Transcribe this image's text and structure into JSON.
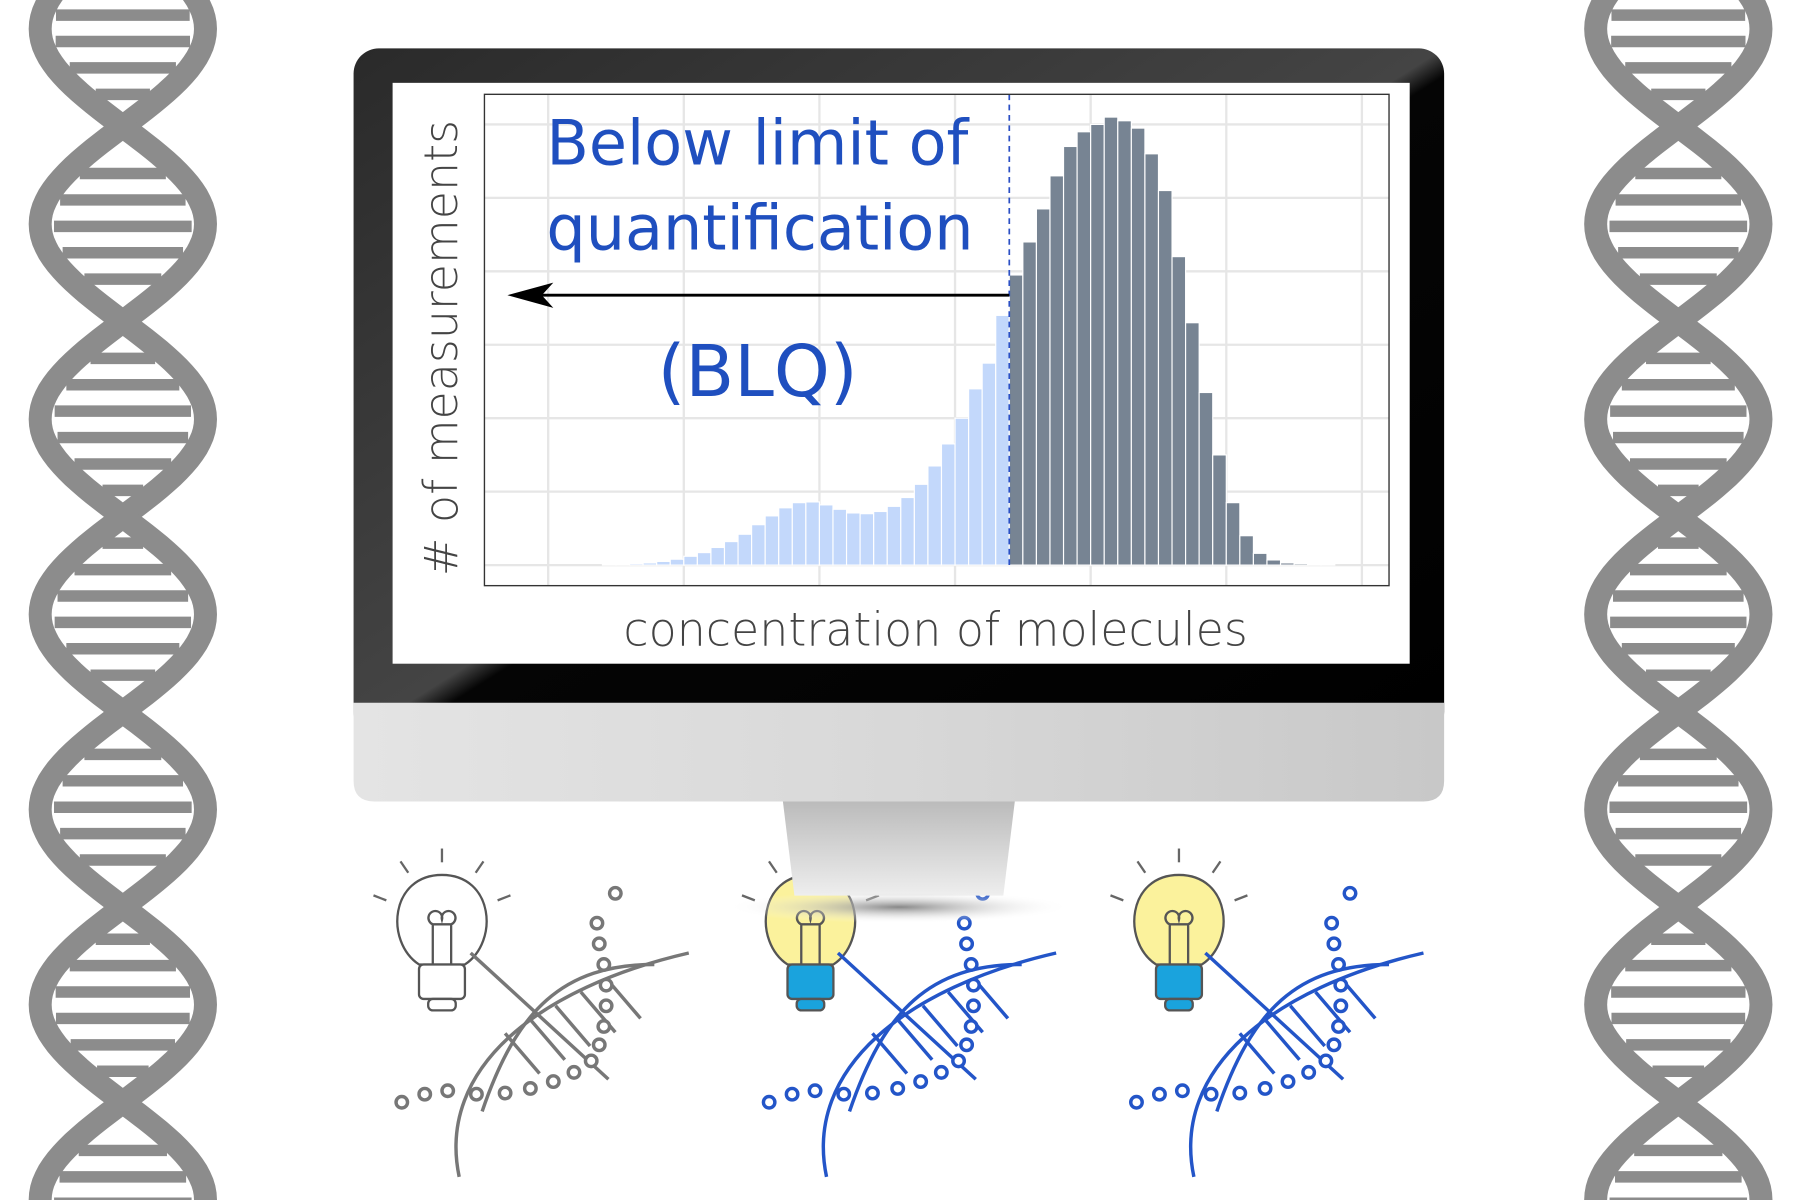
{
  "chart_data": {
    "type": "histogram",
    "annotation_lines": [
      "Below limit of",
      "quantification"
    ],
    "annotation_abbrev": "(BLQ)",
    "ylabel": "# of measurements",
    "xlabel": "concentration of molecules",
    "bins": [
      0.4,
      0.5,
      0.6,
      0.7,
      0.8,
      0.9,
      1.0,
      1.1,
      1.2,
      1.3,
      1.4,
      1.5,
      1.6,
      1.7,
      1.8,
      1.9,
      2.0,
      2.1,
      2.2,
      2.3,
      2.4,
      2.5,
      2.6,
      2.7,
      2.8,
      2.9,
      3.0,
      3.1,
      3.2,
      3.3,
      3.4,
      3.5,
      3.6,
      3.7,
      3.8,
      3.9,
      4.0,
      4.1,
      4.2,
      4.3,
      4.4,
      4.5,
      4.6,
      4.7,
      4.8,
      4.9,
      5.0,
      5.1,
      5.2,
      5.3,
      5.4,
      5.5,
      5.6,
      5.7,
      5.8,
      5.9,
      6.0
    ],
    "values": [
      0.01,
      0.01,
      0.02,
      0.03,
      0.05,
      0.08,
      0.12,
      0.17,
      0.24,
      0.32,
      0.42,
      0.55,
      0.67,
      0.78,
      0.85,
      0.86,
      0.82,
      0.76,
      0.71,
      0.7,
      0.73,
      0.8,
      0.92,
      1.1,
      1.35,
      1.65,
      2.0,
      2.4,
      2.75,
      3.4,
      3.95,
      4.4,
      4.85,
      5.3,
      5.7,
      5.9,
      6.0,
      6.1,
      6.05,
      5.95,
      5.6,
      5.1,
      4.2,
      3.3,
      2.35,
      1.5,
      0.85,
      0.4,
      0.16,
      0.07,
      0.03,
      0.02,
      0.01,
      0.01,
      0,
      0
    ],
    "threshold": 3.4,
    "color_below": "#c3d8fb",
    "color_above": "#778493",
    "threshold_color": "#2a4fc4",
    "xlim": [
      -0.47,
      6.2
    ],
    "ylim": [
      -0.28,
      6.41
    ],
    "xticks": [
      0,
      1,
      2,
      3,
      4,
      5,
      6
    ],
    "yticks": [
      0,
      1,
      2,
      3,
      4,
      5,
      6
    ],
    "grid": true
  }
}
